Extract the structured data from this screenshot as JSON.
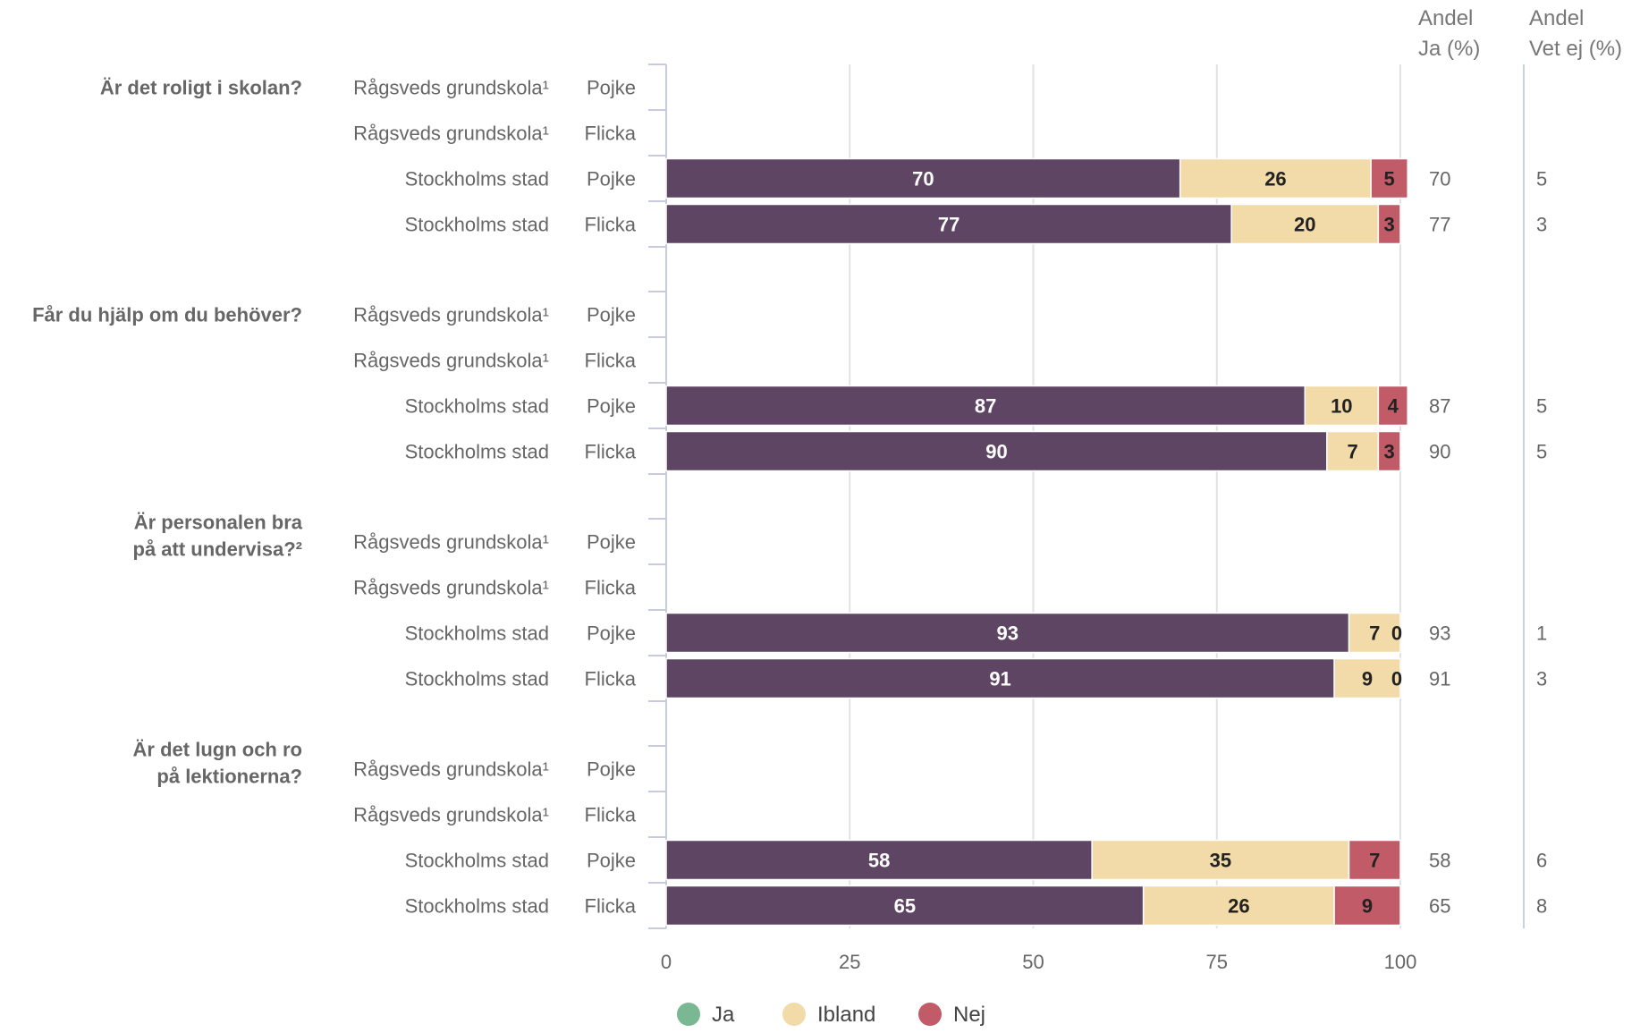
{
  "chart_data": {
    "type": "bar",
    "orientation": "horizontal",
    "stacked": true,
    "xlim": [
      0,
      100
    ],
    "xticks": [
      "0",
      "25",
      "50",
      "75",
      "100"
    ],
    "grid": true,
    "legend_position": "bottom",
    "columns": {
      "share_yes": [
        "Andel",
        "Ja (%)"
      ],
      "share_dontknow": [
        "Andel",
        "Vet ej (%)"
      ]
    },
    "legend": [
      {
        "label": "Ja",
        "color": "#79b893"
      },
      {
        "label": "Ibland",
        "color": "#f2dba8"
      },
      {
        "label": "Nej",
        "color": "#c25b68"
      }
    ],
    "series_colors": {
      "yes": "#5e4563",
      "sometimes": "#f2dba8",
      "no": "#c25b68"
    },
    "groups": [
      {
        "question": [
          "Är det roligt i skolan?"
        ],
        "rows": [
          {
            "unit": "Rågsveds grundskola¹",
            "gender": "Pojke",
            "values": null,
            "share_yes": "",
            "share_dontknow": ""
          },
          {
            "unit": "Rågsveds grundskola¹",
            "gender": "Flicka",
            "values": null,
            "share_yes": "",
            "share_dontknow": ""
          },
          {
            "unit": "Stockholms stad",
            "gender": "Pojke",
            "values": [
              70,
              26,
              5
            ],
            "share_yes": "70",
            "share_dontknow": "5"
          },
          {
            "unit": "Stockholms stad",
            "gender": "Flicka",
            "values": [
              77,
              20,
              3
            ],
            "share_yes": "77",
            "share_dontknow": "3"
          }
        ]
      },
      {
        "question": [
          "Får du hjälp om du behöver?"
        ],
        "rows": [
          {
            "unit": "Rågsveds grundskola¹",
            "gender": "Pojke",
            "values": null,
            "share_yes": "",
            "share_dontknow": ""
          },
          {
            "unit": "Rågsveds grundskola¹",
            "gender": "Flicka",
            "values": null,
            "share_yes": "",
            "share_dontknow": ""
          },
          {
            "unit": "Stockholms stad",
            "gender": "Pojke",
            "values": [
              87,
              10,
              4
            ],
            "share_yes": "87",
            "share_dontknow": "5"
          },
          {
            "unit": "Stockholms stad",
            "gender": "Flicka",
            "values": [
              90,
              7,
              3
            ],
            "share_yes": "90",
            "share_dontknow": "5"
          }
        ]
      },
      {
        "question": [
          "Är personalen bra",
          "på att undervisa?²"
        ],
        "rows": [
          {
            "unit": "Rågsveds grundskola¹",
            "gender": "Pojke",
            "values": null,
            "share_yes": "",
            "share_dontknow": ""
          },
          {
            "unit": "Rågsveds grundskola¹",
            "gender": "Flicka",
            "values": null,
            "share_yes": "",
            "share_dontknow": ""
          },
          {
            "unit": "Stockholms stad",
            "gender": "Pojke",
            "values": [
              93,
              7,
              0
            ],
            "share_yes": "93",
            "share_dontknow": "1"
          },
          {
            "unit": "Stockholms stad",
            "gender": "Flicka",
            "values": [
              91,
              9,
              0
            ],
            "share_yes": "91",
            "share_dontknow": "3"
          }
        ]
      },
      {
        "question": [
          "Är det lugn och ro",
          "på lektionerna?"
        ],
        "rows": [
          {
            "unit": "Rågsveds grundskola¹",
            "gender": "Pojke",
            "values": null,
            "share_yes": "",
            "share_dontknow": ""
          },
          {
            "unit": "Rågsveds grundskola¹",
            "gender": "Flicka",
            "values": null,
            "share_yes": "",
            "share_dontknow": ""
          },
          {
            "unit": "Stockholms stad",
            "gender": "Pojke",
            "values": [
              58,
              35,
              7
            ],
            "share_yes": "58",
            "share_dontknow": "6"
          },
          {
            "unit": "Stockholms stad",
            "gender": "Flicka",
            "values": [
              65,
              26,
              9
            ],
            "share_yes": "65",
            "share_dontknow": "8"
          }
        ]
      }
    ]
  }
}
